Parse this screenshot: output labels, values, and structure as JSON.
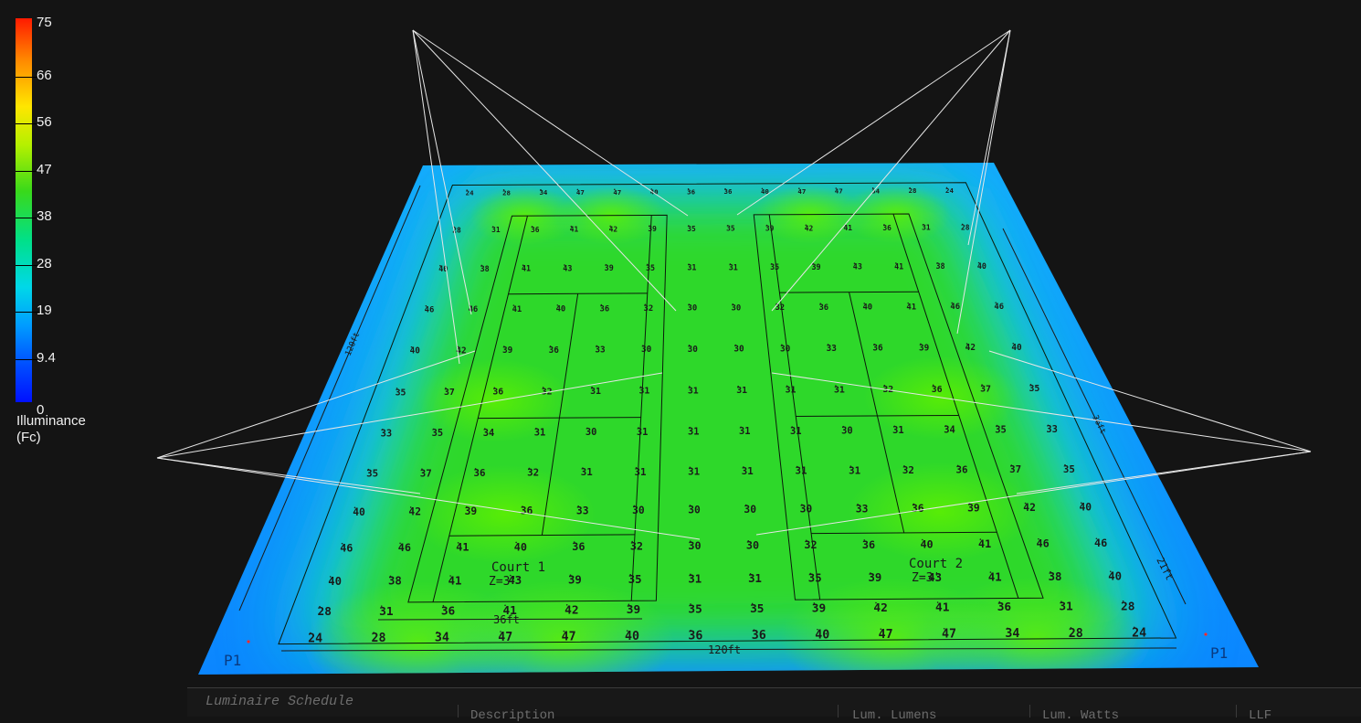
{
  "legend": {
    "title_line1": "Illuminance",
    "title_line2": "(Fc)",
    "values": [
      "75",
      "66",
      "56",
      "47",
      "38",
      "28",
      "19",
      "9.4",
      "0"
    ]
  },
  "plan": {
    "court1_label": "Court 1",
    "court1_z": "Z=3'",
    "court2_label": "Court 2",
    "court2_z": "Z=3'",
    "dim_total_width": "120ft",
    "dim_total_depth": "120ft",
    "dim_court_width": "36ft",
    "dim_side_a": "36ft",
    "dim_side_b": "21ft",
    "pole_label_left": "P1",
    "pole_label_right": "P1",
    "grid_values": [
      [
        "24",
        "28",
        "34",
        "47",
        "47",
        "40",
        "36",
        "36",
        "40",
        "47",
        "47",
        "34",
        "28",
        "24"
      ],
      [
        "28",
        "31",
        "36",
        "41",
        "42",
        "39",
        "35",
        "35",
        "39",
        "42",
        "41",
        "36",
        "31",
        "28"
      ],
      [
        "40",
        "38",
        "41",
        "43",
        "39",
        "35",
        "31",
        "31",
        "35",
        "39",
        "43",
        "41",
        "38",
        "40"
      ],
      [
        "46",
        "46",
        "41",
        "40",
        "36",
        "32",
        "30",
        "30",
        "32",
        "36",
        "40",
        "41",
        "46",
        "46"
      ],
      [
        "40",
        "42",
        "39",
        "36",
        "33",
        "30",
        "30",
        "30",
        "30",
        "33",
        "36",
        "39",
        "42",
        "40"
      ],
      [
        "35",
        "37",
        "36",
        "32",
        "31",
        "31",
        "31",
        "31",
        "31",
        "31",
        "32",
        "36",
        "37",
        "35"
      ],
      [
        "33",
        "35",
        "34",
        "31",
        "30",
        "31",
        "31",
        "31",
        "31",
        "30",
        "31",
        "34",
        "35",
        "33"
      ],
      [
        "35",
        "37",
        "36",
        "32",
        "31",
        "31",
        "31",
        "31",
        "31",
        "31",
        "32",
        "36",
        "37",
        "35"
      ],
      [
        "40",
        "42",
        "39",
        "36",
        "33",
        "30",
        "30",
        "30",
        "30",
        "33",
        "36",
        "39",
        "42",
        "40"
      ],
      [
        "46",
        "46",
        "41",
        "40",
        "36",
        "32",
        "30",
        "30",
        "32",
        "36",
        "40",
        "41",
        "46",
        "46"
      ],
      [
        "40",
        "38",
        "41",
        "43",
        "39",
        "35",
        "31",
        "31",
        "35",
        "39",
        "43",
        "41",
        "38",
        "40"
      ],
      [
        "28",
        "31",
        "36",
        "41",
        "42",
        "39",
        "35",
        "35",
        "39",
        "42",
        "41",
        "36",
        "31",
        "28"
      ],
      [
        "24",
        "28",
        "34",
        "47",
        "47",
        "40",
        "36",
        "36",
        "40",
        "47",
        "47",
        "34",
        "28",
        "24"
      ]
    ]
  },
  "schedule": {
    "title": "Luminaire Schedule",
    "col_description": "Description",
    "col_lumens": "Lum. Lumens",
    "col_watts": "Lum. Watts",
    "col_llf": "LLF"
  }
}
